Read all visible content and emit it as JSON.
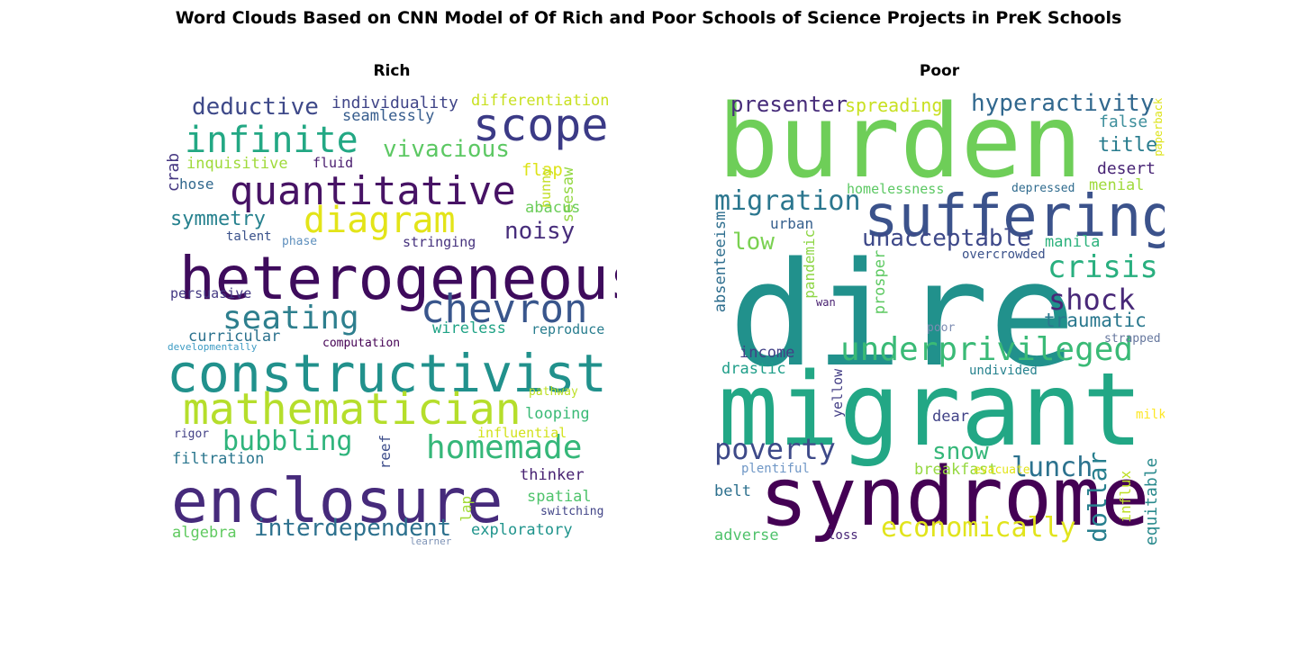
{
  "figure": {
    "title": "Word Clouds Based on CNN Model of Of Rich and Poor Schools of Science Projects in PreK Schools"
  },
  "panels": [
    {
      "title": "Rich",
      "words": [
        {
          "text": "heterogeneous",
          "color": "#3e0b5c"
        },
        {
          "text": "constructivist",
          "color": "#21918c"
        },
        {
          "text": "enclosure",
          "color": "#462a7b"
        },
        {
          "text": "mathematician",
          "color": "#b5de2b"
        },
        {
          "text": "quantitative",
          "color": "#471365"
        },
        {
          "text": "infinite",
          "color": "#23a884"
        },
        {
          "text": "scope",
          "color": "#3b3a86"
        },
        {
          "text": "chevron",
          "color": "#39568c"
        },
        {
          "text": "diagram",
          "color": "#e3e418"
        },
        {
          "text": "seating",
          "color": "#2e7f8e"
        },
        {
          "text": "homemade",
          "color": "#35b779"
        },
        {
          "text": "bubbling",
          "color": "#2fb47c"
        },
        {
          "text": "deductive",
          "color": "#3e4989"
        },
        {
          "text": "vivacious",
          "color": "#5cc863"
        },
        {
          "text": "symmetry",
          "color": "#26818e"
        },
        {
          "text": "interdependent",
          "color": "#2d718e"
        },
        {
          "text": "noisy",
          "color": "#472d7b"
        },
        {
          "text": "individuality",
          "color": "#404588"
        },
        {
          "text": "seamlessly",
          "color": "#365c8d"
        },
        {
          "text": "differentiation",
          "color": "#c8e020"
        },
        {
          "text": "inquisitive",
          "color": "#9fda3a"
        },
        {
          "text": "fluid",
          "color": "#481b6d"
        },
        {
          "text": "flap",
          "color": "#dde318"
        },
        {
          "text": "bunny",
          "color": "#c2df23"
        },
        {
          "text": "seesaw",
          "color": "#93d741"
        },
        {
          "text": "crab",
          "color": "#453781"
        },
        {
          "text": "hose",
          "color": "#31688e"
        },
        {
          "text": "abacus",
          "color": "#6ccd5a"
        },
        {
          "text": "talent",
          "color": "#3b528b"
        },
        {
          "text": "phase",
          "color": "#5e8fbd"
        },
        {
          "text": "stringing",
          "color": "#46327e"
        },
        {
          "text": "persuasive",
          "color": "#443983"
        },
        {
          "text": "curricular",
          "color": "#2c728e"
        },
        {
          "text": "developmentally",
          "color": "#3e9cc4"
        },
        {
          "text": "computation",
          "color": "#440154"
        },
        {
          "text": "wireless",
          "color": "#20a386"
        },
        {
          "text": "reproduce",
          "color": "#287d8e"
        },
        {
          "text": "pathway",
          "color": "#bddf26"
        },
        {
          "text": "looping",
          "color": "#3aba76"
        },
        {
          "text": "influential",
          "color": "#d2e21b"
        },
        {
          "text": "rigor",
          "color": "#424086"
        },
        {
          "text": "reef",
          "color": "#3d4d8a"
        },
        {
          "text": "filtration",
          "color": "#2a768e"
        },
        {
          "text": "thinker",
          "color": "#482273"
        },
        {
          "text": "spatial",
          "color": "#4ec36b"
        },
        {
          "text": "switching",
          "color": "#414487"
        },
        {
          "text": "lap",
          "color": "#a2da37"
        },
        {
          "text": "algebra",
          "color": "#60ca60"
        },
        {
          "text": "exploratory",
          "color": "#1f948c"
        },
        {
          "text": "learner",
          "color": "#7e93b6"
        }
      ]
    },
    {
      "title": "Poor",
      "words": [
        {
          "text": "dire",
          "color": "#21918c"
        },
        {
          "text": "migrant",
          "color": "#22a785"
        },
        {
          "text": "burden",
          "color": "#6ece58"
        },
        {
          "text": "syndrome",
          "color": "#440154"
        },
        {
          "text": "suffering",
          "color": "#3b528b"
        },
        {
          "text": "underprivileged",
          "color": "#3aba76"
        },
        {
          "text": "unacceptable",
          "color": "#3e4989"
        },
        {
          "text": "migration",
          "color": "#2a768e"
        },
        {
          "text": "crisis",
          "color": "#29af7f"
        },
        {
          "text": "shock",
          "color": "#482878"
        },
        {
          "text": "economically",
          "color": "#e1e41c"
        },
        {
          "text": "poverty",
          "color": "#3e4a89"
        },
        {
          "text": "hyperactivity",
          "color": "#31688e"
        },
        {
          "text": "presenter",
          "color": "#472c7a"
        },
        {
          "text": "spreading",
          "color": "#c8e020"
        },
        {
          "text": "lunch",
          "color": "#2c728e"
        },
        {
          "text": "snow",
          "color": "#35b779"
        },
        {
          "text": "dollar",
          "color": "#277f8e"
        },
        {
          "text": "traumatic",
          "color": "#2a788e"
        },
        {
          "text": "title",
          "color": "#287c8e"
        },
        {
          "text": "false",
          "color": "#3e8f9c"
        },
        {
          "text": "desert",
          "color": "#482475"
        },
        {
          "text": "menial",
          "color": "#9fda3a"
        },
        {
          "text": "paperback",
          "color": "#dde318"
        },
        {
          "text": "homelessness",
          "color": "#5cc863"
        },
        {
          "text": "depressed",
          "color": "#2f6b8e"
        },
        {
          "text": "low",
          "color": "#7ad151"
        },
        {
          "text": "manila",
          "color": "#2db27d"
        },
        {
          "text": "urban",
          "color": "#355f8d"
        },
        {
          "text": "overcrowded",
          "color": "#3b528b"
        },
        {
          "text": "absenteeism",
          "color": "#2e6e8e"
        },
        {
          "text": "pandemic",
          "color": "#8ed645"
        },
        {
          "text": "prosper",
          "color": "#5ec962"
        },
        {
          "text": "wan",
          "color": "#482071"
        },
        {
          "text": "poor",
          "color": "#7b8bb1"
        },
        {
          "text": "strapped",
          "color": "#66779e"
        },
        {
          "text": "income",
          "color": "#424086"
        },
        {
          "text": "drastic",
          "color": "#1f9e89"
        },
        {
          "text": "yellow",
          "color": "#433e85"
        },
        {
          "text": "undivided",
          "color": "#26828e"
        },
        {
          "text": "dear",
          "color": "#414287"
        },
        {
          "text": "milk",
          "color": "#fde725"
        },
        {
          "text": "breakfast",
          "color": "#95d840"
        },
        {
          "text": "evacuate",
          "color": "#e2e418"
        },
        {
          "text": "plentiful",
          "color": "#6f97c6"
        },
        {
          "text": "influx",
          "color": "#bddf26"
        },
        {
          "text": "equitable",
          "color": "#2a8a8d"
        },
        {
          "text": "belt",
          "color": "#2d708e"
        },
        {
          "text": "adverse",
          "color": "#4fc26b"
        },
        {
          "text": "loss",
          "color": "#482677"
        }
      ]
    }
  ]
}
